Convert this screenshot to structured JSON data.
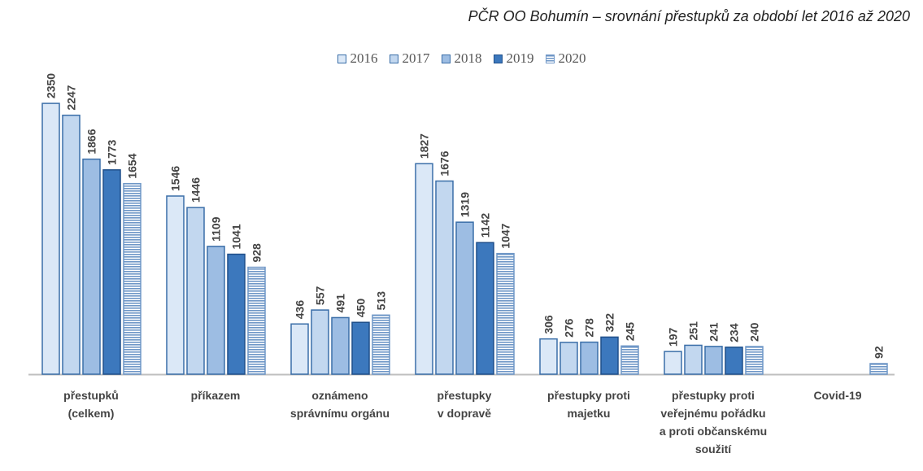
{
  "chart_data": {
    "type": "bar",
    "title": "PČR OO Bohumín – srovnání přestupků za období let 2016 až 2020",
    "categories": [
      "přestupků\n(celkem)",
      "příkazem",
      "oznámeno\nsprávnímu orgánu",
      "přestupky\nv dopravě",
      "přestupky proti\nmajetku",
      "přestupky proti\nveřejnému pořádku\na proti občanskému\nsoužití",
      "Covid-19"
    ],
    "series": [
      {
        "name": "2016",
        "values": [
          2350,
          1546,
          436,
          1827,
          306,
          197,
          null
        ],
        "fill": "#dbe8f7",
        "stroke": "#3a6ea8"
      },
      {
        "name": "2017",
        "values": [
          2247,
          1446,
          557,
          1676,
          276,
          251,
          null
        ],
        "fill": "#c2d7ef",
        "stroke": "#3a6ea8"
      },
      {
        "name": "2018",
        "values": [
          1866,
          1109,
          491,
          1319,
          278,
          241,
          null
        ],
        "fill": "#9dbde3",
        "stroke": "#3a6ea8"
      },
      {
        "name": "2019",
        "values": [
          1773,
          1041,
          450,
          1142,
          322,
          234,
          null
        ],
        "fill": "#3c78bd",
        "stroke": "#1f4f8a"
      },
      {
        "name": "2020",
        "values": [
          1654,
          928,
          513,
          1047,
          245,
          240,
          92
        ],
        "fill": "#6f97c7",
        "stroke": "#6f97c7",
        "pattern": "stripes"
      }
    ],
    "ylim": [
      0,
      2400
    ],
    "legend": "top",
    "grid": false,
    "data_labels": true
  }
}
